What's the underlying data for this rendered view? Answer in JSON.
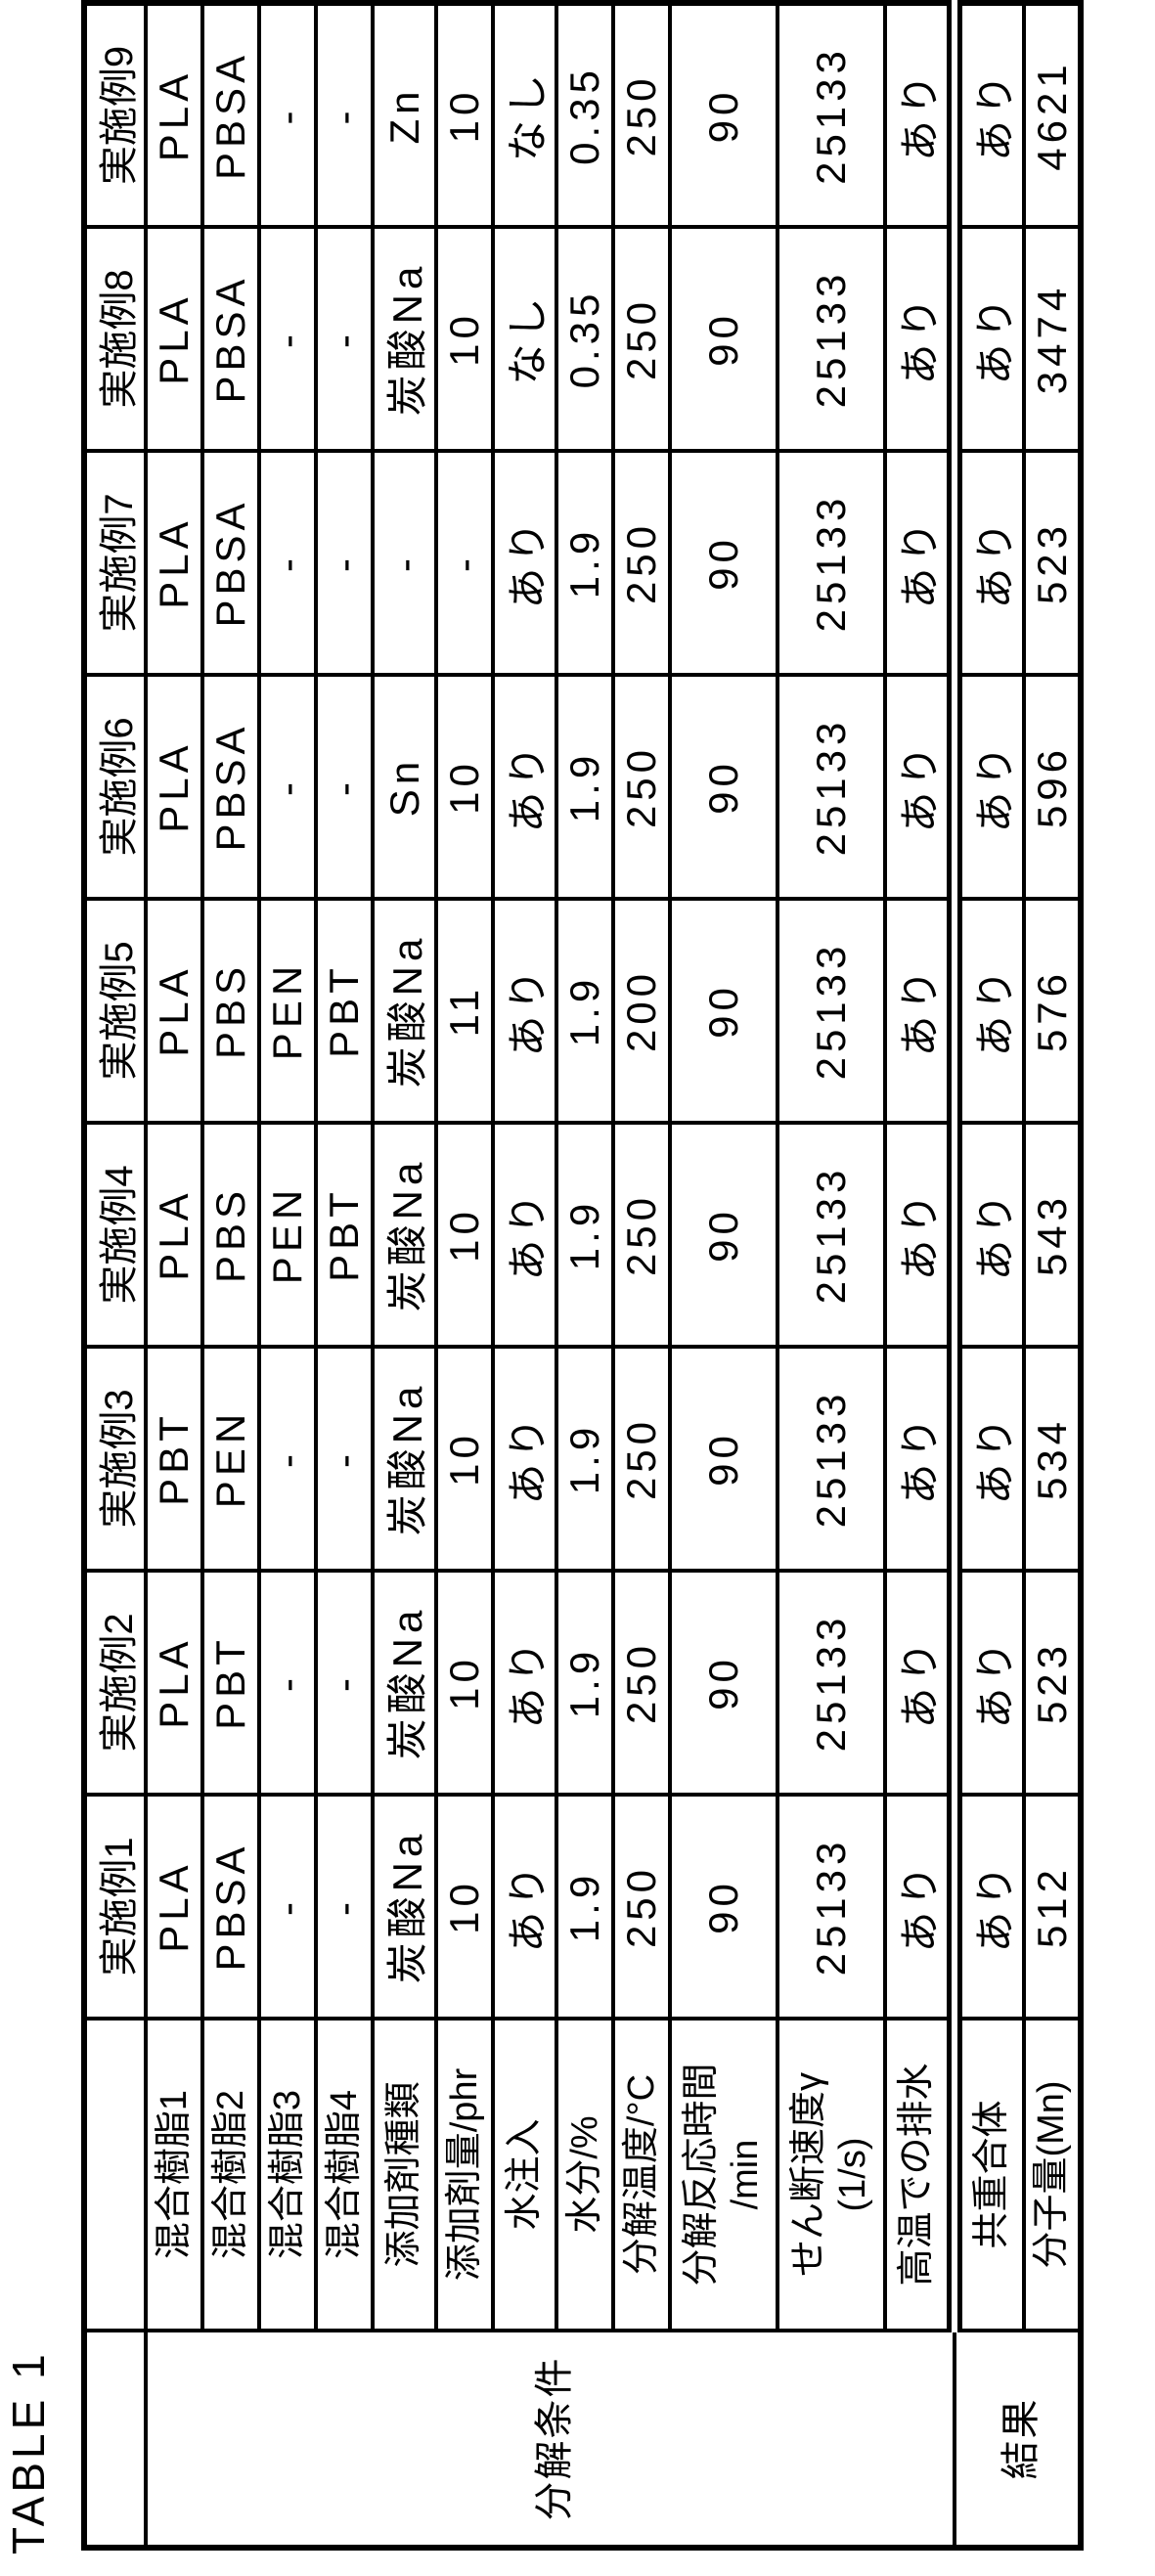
{
  "page": {
    "title": "TABLE 1"
  },
  "table": {
    "col_headers": [
      "実施例1",
      "実施例2",
      "実施例3",
      "実施例4",
      "実施例5",
      "実施例6",
      "実施例7",
      "実施例8",
      "実施例9"
    ],
    "groups": [
      {
        "label": "分解条件",
        "rows": [
          {
            "label_lines": [
              "混合樹脂1"
            ],
            "values": [
              "PLA",
              "PLA",
              "PBT",
              "PLA",
              "PLA",
              "PLA",
              "PLA",
              "PLA",
              "PLA"
            ]
          },
          {
            "label_lines": [
              "混合樹脂2"
            ],
            "values": [
              "PBSA",
              "PBT",
              "PEN",
              "PBS",
              "PBS",
              "PBSA",
              "PBSA",
              "PBSA",
              "PBSA"
            ]
          },
          {
            "label_lines": [
              "混合樹脂3"
            ],
            "values": [
              "-",
              "-",
              "-",
              "PEN",
              "PEN",
              "-",
              "-",
              "-",
              "-"
            ]
          },
          {
            "label_lines": [
              "混合樹脂4"
            ],
            "values": [
              "-",
              "-",
              "-",
              "PBT",
              "PBT",
              "-",
              "-",
              "-",
              "-"
            ]
          },
          {
            "label_lines": [
              "添加剤種類"
            ],
            "values": [
              "炭酸Na",
              "炭酸Na",
              "炭酸Na",
              "炭酸Na",
              "炭酸Na",
              "Sn",
              "-",
              "炭酸Na",
              "Zn"
            ]
          },
          {
            "label_lines": [
              "添加剤量/phr"
            ],
            "values": [
              "10",
              "10",
              "10",
              "10",
              "11",
              "10",
              "-",
              "10",
              "10"
            ]
          },
          {
            "label_lines": [
              "水注入"
            ],
            "values": [
              "あり",
              "あり",
              "あり",
              "あり",
              "あり",
              "あり",
              "あり",
              "なし",
              "なし"
            ]
          },
          {
            "label_lines": [
              "水分/%"
            ],
            "values": [
              "1.9",
              "1.9",
              "1.9",
              "1.9",
              "1.9",
              "1.9",
              "1.9",
              "0.35",
              "0.35"
            ]
          },
          {
            "label_lines": [
              "分解温度/°C"
            ],
            "values": [
              "250",
              "250",
              "250",
              "250",
              "200",
              "250",
              "250",
              "250",
              "250"
            ]
          },
          {
            "label_lines": [
              "分解反応時間",
              "/min"
            ],
            "values": [
              "90",
              "90",
              "90",
              "90",
              "90",
              "90",
              "90",
              "90",
              "90"
            ]
          },
          {
            "label_lines": [
              "せん断速度γ",
              "(1/s)"
            ],
            "values": [
              "25133",
              "25133",
              "25133",
              "25133",
              "25133",
              "25133",
              "25133",
              "25133",
              "25133"
            ]
          },
          {
            "label_lines": [
              "高温での排水"
            ],
            "values": [
              "あり",
              "あり",
              "あり",
              "あり",
              "あり",
              "あり",
              "あり",
              "あり",
              "あり"
            ]
          }
        ]
      },
      {
        "label": "結果",
        "rows": [
          {
            "label_lines": [
              "共重合体"
            ],
            "values": [
              "あり",
              "あり",
              "あり",
              "あり",
              "あり",
              "あり",
              "あり",
              "あり",
              "あり"
            ]
          },
          {
            "label_lines": [
              "分子量(Mn)"
            ],
            "values": [
              "512",
              "523",
              "534",
              "543",
              "576",
              "596",
              "523",
              "3474",
              "4621"
            ]
          }
        ]
      }
    ]
  }
}
